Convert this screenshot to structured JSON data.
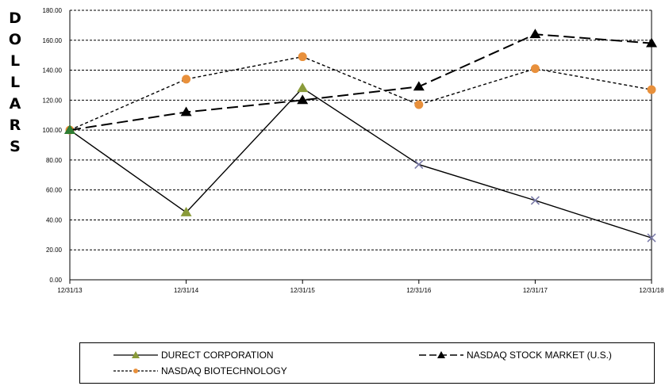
{
  "chart_data": {
    "type": "line",
    "ylabel": "DOLLARS",
    "xlabel": "",
    "title": "",
    "categories": [
      "12/31/13",
      "12/31/14",
      "12/31/15",
      "12/31/16",
      "12/31/17",
      "12/31/18"
    ],
    "ylim": [
      0,
      180
    ],
    "yticks": [
      "0.00",
      "20.00",
      "40.00",
      "60.00",
      "80.00",
      "100.00",
      "120.00",
      "140.00",
      "160.00",
      "180.00"
    ],
    "grid": "horizontal dashed",
    "legend_position": "bottom",
    "series": [
      {
        "name": "DURECT CORPORATION",
        "values": [
          100,
          45,
          128,
          77,
          53,
          28
        ],
        "color": "#000000",
        "dash": "solid",
        "marker_colors": [
          "#2e7d32",
          "#8a9b3a",
          "#8a9b3a",
          "#7a7aa8",
          "#7a7aa8",
          "#7a7aa8"
        ],
        "markers": [
          "triangle",
          "triangle",
          "triangle",
          "x",
          "x",
          "x"
        ]
      },
      {
        "name": "NASDAQ STOCK MARKET (U.S.)",
        "values": [
          100,
          112,
          120,
          129,
          164,
          158
        ],
        "color": "#000000",
        "dash": "long-dash",
        "marker_color": "#000000",
        "marker": "triangle"
      },
      {
        "name": "NASDAQ BIOTECHNOLOGY",
        "values": [
          100,
          134,
          149,
          117,
          141,
          127
        ],
        "color": "#000000",
        "dash": "short-dash",
        "marker_color": "#e8903c",
        "marker": "circle"
      }
    ]
  }
}
